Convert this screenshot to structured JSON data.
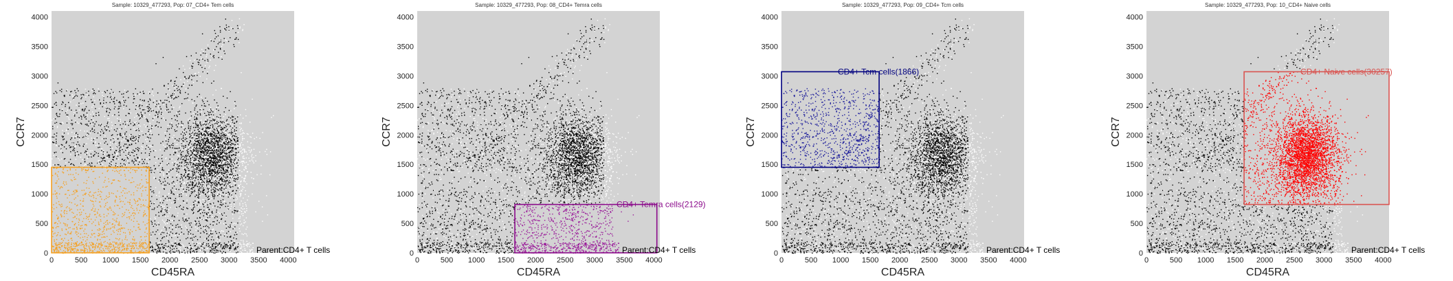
{
  "chart_data": [
    {
      "type": "scatter",
      "title": "Sample: 10329_477293, Pop: 07_CD4+ Tem cells",
      "xlabel": "CD45RA",
      "ylabel": "CCR7",
      "xlim": [
        0,
        4100
      ],
      "ylim": [
        0,
        4100
      ],
      "xticks": [
        "0",
        "500",
        "1000",
        "1500",
        "2000",
        "2500",
        "3000",
        "3500",
        "4000"
      ],
      "yticks": [
        "0",
        "500",
        "1000",
        "1500",
        "2000",
        "2500",
        "3000",
        "3500",
        "4000"
      ],
      "grid": false,
      "gate": {
        "name": "",
        "count": "",
        "label": "",
        "x_range": [
          0,
          1650
        ],
        "y_range": [
          0,
          1450
        ],
        "color": "#f5a020",
        "label_anchor": "end"
      },
      "parent_note": "Parent:CD4+ T cells",
      "highlight_color": "#f5a020"
    },
    {
      "type": "scatter",
      "title": "Sample: 10329_477293, Pop: 08_CD4+ Temra cells",
      "xlabel": "CD45RA",
      "ylabel": "CCR7",
      "xlim": [
        0,
        4100
      ],
      "ylim": [
        0,
        4100
      ],
      "xticks": [
        "0",
        "500",
        "1000",
        "1500",
        "2000",
        "2500",
        "3000",
        "3500",
        "4000"
      ],
      "yticks": [
        "0",
        "500",
        "1000",
        "1500",
        "2000",
        "2500",
        "3000",
        "3500",
        "4000"
      ],
      "grid": false,
      "gate": {
        "name": "CD4+ Temra cells",
        "count": 2129,
        "label": "CD4+ Temra cells(2129)",
        "x_range": [
          1650,
          4050
        ],
        "y_range": [
          0,
          820
        ],
        "color": "#8b0a8b",
        "label_anchor": "start"
      },
      "parent_note": "Parent:CD4+ T cells",
      "highlight_color": "#9a1a9a"
    },
    {
      "type": "scatter",
      "title": "Sample: 10329_477293, Pop: 09_CD4+ Tcm cells",
      "xlabel": "CD45RA",
      "ylabel": "CCR7",
      "xlim": [
        0,
        4100
      ],
      "ylim": [
        0,
        4100
      ],
      "xticks": [
        "0",
        "500",
        "1000",
        "1500",
        "2000",
        "2500",
        "3000",
        "3500",
        "4000"
      ],
      "yticks": [
        "0",
        "500",
        "1000",
        "1500",
        "2000",
        "2500",
        "3000",
        "3500",
        "4000"
      ],
      "grid": false,
      "gate": {
        "name": "CD4+ Tcm cells",
        "count": 1866,
        "label": "CD4+ Tcm cells(1866)",
        "x_range": [
          0,
          1650
        ],
        "y_range": [
          1450,
          3070
        ],
        "color": "#00007f",
        "label_anchor": "start"
      },
      "parent_note": "Parent:CD4+ T cells",
      "highlight_color": "#1a1a9a"
    },
    {
      "type": "scatter",
      "title": "Sample: 10329_477293, Pop: 10_CD4+ Naive cells",
      "xlabel": "CD45RA",
      "ylabel": "CCR7",
      "xlim": [
        0,
        4100
      ],
      "ylim": [
        0,
        4100
      ],
      "xticks": [
        "0",
        "500",
        "1000",
        "1500",
        "2000",
        "2500",
        "3000",
        "3500",
        "4000"
      ],
      "yticks": [
        "0",
        "500",
        "1000",
        "1500",
        "2000",
        "2500",
        "3000",
        "3500",
        "4000"
      ],
      "grid": false,
      "gate": {
        "name": "CD4+ Naive cells",
        "count": 30257,
        "label": "CD4+ Naive cells(30257)",
        "x_range": [
          1650,
          4100
        ],
        "y_range": [
          820,
          3070
        ],
        "color": "#d9534f",
        "label_anchor": "start"
      },
      "parent_note": "Parent:CD4+ T cells",
      "highlight_color": "#ff0000"
    }
  ],
  "colors": {
    "panel_background": "#d3d3d3",
    "event_black": "#000000",
    "event_white": "#ffffff"
  }
}
